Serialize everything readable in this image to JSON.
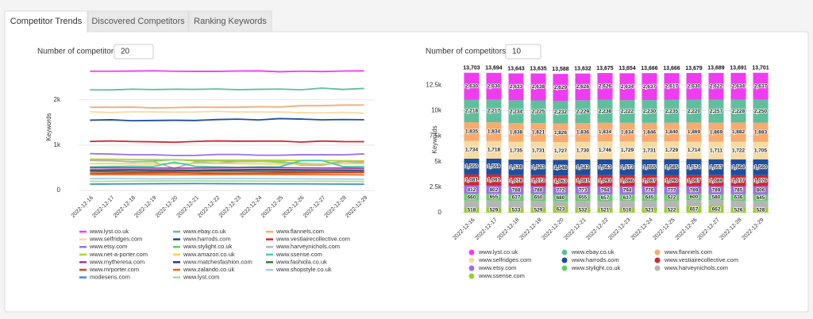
{
  "tabs": [
    "Competitor Trends",
    "Discovered Competitors",
    "Ranking Keywords"
  ],
  "chart_data": [
    {
      "type": "line",
      "control": {
        "label": "Number of competitors",
        "value": 20
      },
      "ylabel": "Keywords",
      "grid": true,
      "x": [
        "2022-12-16",
        "2022-12-17",
        "2022-12-18",
        "2022-12-19",
        "2022-12-20",
        "2022-12-21",
        "2022-12-22",
        "2022-12-23",
        "2022-12-24",
        "2022-12-25",
        "2022-12-26",
        "2022-12-27",
        "2022-12-28",
        "2022-12-29"
      ],
      "ylim": [
        0,
        2800
      ],
      "yticks": [
        0,
        {
          "value": 1000,
          "label": "1k"
        },
        {
          "value": 2000,
          "label": "2k"
        }
      ],
      "series": [
        {
          "name": "www.lyst.co.uk",
          "color": "#f03cf0",
          "values": [
            2630,
            2630,
            2633,
            2638,
            2629,
            2626,
            2626,
            2634,
            2637,
            2617,
            2630,
            2622,
            2634,
            2637
          ]
        },
        {
          "name": "www.ebay.co.uk",
          "color": "#5fbf9c",
          "values": [
            2218,
            2217,
            2234,
            2225,
            2232,
            2229,
            2238,
            2222,
            2230,
            2235,
            2220,
            2257,
            2228,
            2250
          ]
        },
        {
          "name": "www.flannels.com",
          "color": "#f7ab6e",
          "values": [
            1835,
            1834,
            1838,
            1821,
            1826,
            1836,
            1834,
            1834,
            1846,
            1840,
            1869,
            1869,
            1882,
            1883
          ]
        },
        {
          "name": "www.selfridges.com",
          "color": "#f6dca4",
          "values": [
            1734,
            1718,
            1735,
            1731,
            1727,
            1730,
            1746,
            1729,
            1731,
            1729,
            1714,
            1711,
            1722,
            1705
          ]
        },
        {
          "name": "www.harrods.com",
          "color": "#1f4e9c",
          "values": [
            1550,
            1559,
            1538,
            1543,
            1548,
            1543,
            1563,
            1573,
            1555,
            1585,
            1574,
            1557,
            1564,
            1560
          ]
        },
        {
          "name": "www.vestiairecollective.com",
          "color": "#d22630",
          "values": [
            1081,
            1091,
            1078,
            1073,
            1063,
            1081,
            1093,
            1086,
            1087,
            1090,
            1067,
            1089,
            1077,
            1076
          ]
        },
        {
          "name": "www.etsy.com",
          "color": "#9d6fe6",
          "values": [
            812,
            802,
            788,
            788,
            772,
            773,
            794,
            794,
            776,
            777,
            789,
            789,
            785,
            806
          ]
        },
        {
          "name": "www.stylight.co.uk",
          "color": "#68cc6a",
          "values": [
            660,
            655,
            637,
            650,
            680,
            655,
            657,
            637,
            645,
            622,
            600,
            580,
            636,
            645
          ]
        },
        {
          "name": "www.harveynichols.com",
          "color": "#b5b5b5",
          "values": [
            665,
            659,
            629,
            637,
            488,
            627,
            603,
            635,
            638,
            649,
            559,
            553,
            637,
            611
          ]
        },
        {
          "name": "www.net-a-porter.com",
          "color": "#b4d236",
          "values": [
            690,
            688,
            685,
            680,
            676,
            672,
            670,
            668,
            666,
            664,
            660,
            658,
            655,
            652
          ]
        },
        {
          "name": "www.amazon.co.uk",
          "color": "#f0d64a",
          "values": [
            590,
            592,
            588,
            585,
            590,
            594,
            596,
            590,
            586,
            582,
            584,
            588,
            590,
            592
          ]
        },
        {
          "name": "www.ssense.com",
          "color": "#4ac8b4",
          "values": [
            518,
            529,
            533,
            529,
            623,
            532,
            521,
            510,
            521,
            522,
            657,
            662,
            526,
            528
          ]
        },
        {
          "name": "www.mytheresa.com",
          "color": "#a2379f",
          "values": [
            500,
            498,
            496,
            494,
            492,
            495,
            498,
            500,
            502,
            500,
            497,
            495,
            493,
            490
          ]
        },
        {
          "name": "www.matchesfashion.com",
          "color": "#2b3a7c",
          "values": [
            450,
            452,
            455,
            450,
            448,
            446,
            450,
            455,
            458,
            456,
            452,
            450,
            448,
            446
          ]
        },
        {
          "name": "www.fashiola.co.uk",
          "color": "#2e7d32",
          "values": [
            420,
            418,
            415,
            418,
            420,
            422,
            425,
            422,
            420,
            418,
            416,
            414,
            412,
            410
          ]
        },
        {
          "name": "www.mrporter.com",
          "color": "#e0401e",
          "values": [
            380,
            382,
            384,
            386,
            388,
            385,
            382,
            380,
            383,
            386,
            388,
            390,
            392,
            394
          ]
        },
        {
          "name": "www.zalando.co.uk",
          "color": "#e8661c",
          "values": [
            350,
            352,
            350,
            348,
            346,
            348,
            350,
            352,
            354,
            352,
            350,
            348,
            346,
            344
          ]
        },
        {
          "name": "www.shopstyle.co.uk",
          "color": "#a9c9f0",
          "values": [
            260,
            262,
            258,
            255,
            258,
            260,
            262,
            264,
            260,
            258,
            256,
            254,
            252,
            250
          ]
        },
        {
          "name": "modesens.com",
          "color": "#3a8fd8",
          "values": [
            140,
            142,
            145,
            148,
            150,
            152,
            150,
            148,
            146,
            145,
            144,
            142,
            140,
            138
          ]
        },
        {
          "name": "www.lyst.com",
          "color": "#a8e08a",
          "values": [
            200,
            202,
            205,
            208,
            210,
            212,
            210,
            208,
            206,
            205,
            204,
            202,
            200,
            198
          ]
        }
      ]
    },
    {
      "type": "bar",
      "stacked": true,
      "control": {
        "label": "Number of competitors",
        "value": 10
      },
      "ylabel": "Keywords",
      "grid": true,
      "x": [
        "2022-12-16",
        "2022-12-17",
        "2022-12-18",
        "2022-12-19",
        "2022-12-20",
        "2022-12-21",
        "2022-12-22",
        "2022-12-23",
        "2022-12-24",
        "2022-12-25",
        "2022-12-26",
        "2022-12-27",
        "2022-12-28",
        "2022-12-29"
      ],
      "ylim": [
        0,
        14300
      ],
      "yticks": [
        0,
        {
          "value": 2500,
          "label": "2.5k"
        },
        {
          "value": 5000,
          "label": "5k"
        },
        {
          "value": 7500,
          "label": "7.5k"
        },
        {
          "value": 10000,
          "label": "10k"
        },
        {
          "value": 12500,
          "label": "12.5k"
        }
      ],
      "total_labels": [
        "13,703",
        "13,694",
        "13,643",
        "13,635",
        "13,588",
        "13,632",
        "13,675",
        "13,654",
        "13,666",
        "13,666",
        "13,679",
        "13,689",
        "13,691",
        "13,701"
      ],
      "series": [
        {
          "name": "www.lyst.co.uk",
          "color": "#f03cf0",
          "values": [
            2630,
            2630,
            2633,
            2638,
            2629,
            2626,
            2626,
            2634,
            2637,
            2617,
            2630,
            2622,
            2634,
            2637
          ],
          "value_labels": [
            "2,630",
            "2,630",
            "2,633",
            "2,638",
            "2,629",
            "2,626",
            "2,626",
            "2,634",
            "2,637",
            "2,617",
            "2,630",
            "2,622",
            "2,634",
            "2,637"
          ]
        },
        {
          "name": "www.ebay.co.uk",
          "color": "#5fbf9c",
          "values": [
            2218,
            2217,
            2234,
            2225,
            2232,
            2229,
            2238,
            2222,
            2230,
            2235,
            2220,
            2257,
            2228,
            2250
          ],
          "value_labels": [
            "2,218",
            "2,217",
            "2,234",
            "2,225",
            "2,232",
            "2,229",
            "2,238",
            "2,222",
            "2,230",
            "2,235",
            "2,220",
            "2,257",
            "2,228",
            "2,250"
          ]
        },
        {
          "name": "www.flannels.com",
          "color": "#f7ab6e",
          "values": [
            1835,
            1834,
            1838,
            1821,
            1826,
            1836,
            1834,
            1834,
            1846,
            1840,
            1869,
            1869,
            1882,
            1883
          ],
          "value_labels": [
            "1,835",
            "1,834",
            "1,838",
            "1,821",
            "1,826",
            "1,836",
            "1,834",
            "1,834",
            "1,846",
            "1,840",
            "1,869",
            "1,869",
            "1,882",
            "1,883"
          ]
        },
        {
          "name": "www.selfridges.com",
          "color": "#f6dca4",
          "values": [
            1734,
            1718,
            1735,
            1731,
            1727,
            1730,
            1746,
            1729,
            1731,
            1729,
            1714,
            1711,
            1722,
            1705
          ],
          "value_labels": [
            "1,734",
            "1,718",
            "1,735",
            "1,731",
            "1,727",
            "1,730",
            "1,746",
            "1,729",
            "1,731",
            "1,729",
            "1,714",
            "1,711",
            "1,722",
            "1,705"
          ]
        },
        {
          "name": "www.harrods.com",
          "color": "#1f4e9c",
          "values": [
            1550,
            1559,
            1538,
            1543,
            1548,
            1543,
            1563,
            1573,
            1555,
            1585,
            1574,
            1557,
            1564,
            1560
          ],
          "value_labels": [
            "1,550",
            "1,559",
            "1,538",
            "1,543",
            "1,548",
            "1,543",
            "1,563",
            "1,573",
            "1,555",
            "1,585",
            "1,574",
            "1,557",
            "1,564",
            "1,560"
          ]
        },
        {
          "name": "www.vestiairecollective.com",
          "color": "#d22630",
          "values": [
            1081,
            1091,
            1078,
            1073,
            1063,
            1081,
            1093,
            1086,
            1087,
            1090,
            1067,
            1089,
            1077,
            1076
          ],
          "value_labels": [
            "1,081",
            "1,091",
            "1,078",
            "1,073",
            "1,063",
            "1,081",
            "1,093",
            "1,086",
            "1,087",
            "1,090",
            "1,067",
            "1,089",
            "1,077",
            "1,076"
          ]
        },
        {
          "name": "www.etsy.com",
          "color": "#9d6fe6",
          "values": [
            812,
            802,
            788,
            788,
            772,
            773,
            794,
            794,
            776,
            777,
            789,
            789,
            785,
            806
          ]
        },
        {
          "name": "www.stylight.co.uk",
          "color": "#68cc6a",
          "values": [
            660,
            655,
            637,
            650,
            680,
            655,
            657,
            637,
            645,
            622,
            600,
            580,
            636,
            645
          ]
        },
        {
          "name": "www.harveynichols.com",
          "color": "#b5b5b5",
          "labels": false,
          "values": [
            665,
            659,
            629,
            637,
            488,
            627,
            603,
            635,
            638,
            649,
            559,
            553,
            637,
            611
          ]
        },
        {
          "name": "www.ssense.com",
          "color": "#9acd32",
          "values": [
            518,
            529,
            533,
            529,
            623,
            532,
            521,
            510,
            521,
            522,
            657,
            662,
            526,
            528
          ]
        }
      ]
    }
  ]
}
